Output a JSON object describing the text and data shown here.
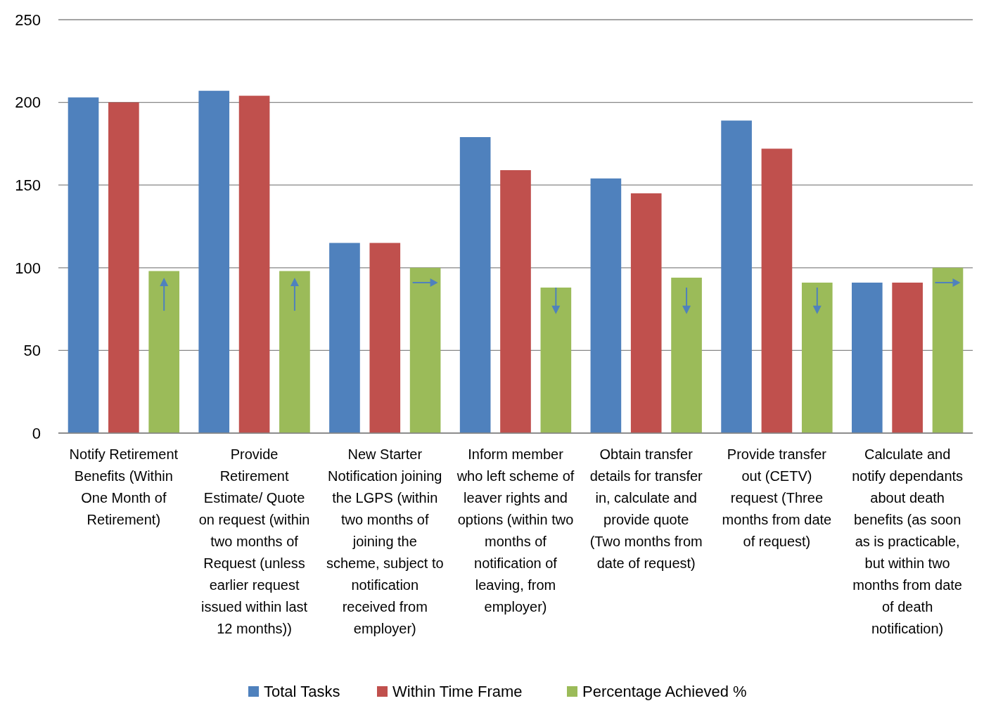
{
  "chart_data": {
    "type": "bar",
    "categories": [
      "Notify Retirement Benefits (Within One Month of Retirement)",
      "Provide Retirement Estimate/ Quote on request (within two months of Request (unless earlier request issued within last 12 months))",
      "New Starter Notification joining the LGPS (within two months of joining the scheme, subject to notification received from employer)",
      "Inform member who left scheme of leaver rights and options (within two months of notification of leaving, from employer)",
      "Obtain transfer details for transfer in, calculate and provide quote (Two months from date of request)",
      "Provide transfer out (CETV) request (Three months from date of request)",
      "Calculate and notify dependants about death benefits (as soon as is practicable, but within two months from date of death notification)"
    ],
    "series": [
      {
        "name": "Total Tasks",
        "color": "#4f81bd",
        "values": [
          203,
          207,
          115,
          179,
          154,
          189,
          91
        ]
      },
      {
        "name": "Within Time Frame",
        "color": "#c0504d",
        "values": [
          200,
          204,
          115,
          159,
          145,
          172,
          91
        ]
      },
      {
        "name": "Percentage Achieved %",
        "color": "#9bbb59",
        "values": [
          98,
          98,
          100,
          88,
          94,
          91,
          100
        ]
      }
    ],
    "ylim": [
      0,
      250
    ],
    "yticks": [
      0,
      50,
      100,
      150,
      200,
      250
    ],
    "grid": "y",
    "legend": "bottom"
  }
}
